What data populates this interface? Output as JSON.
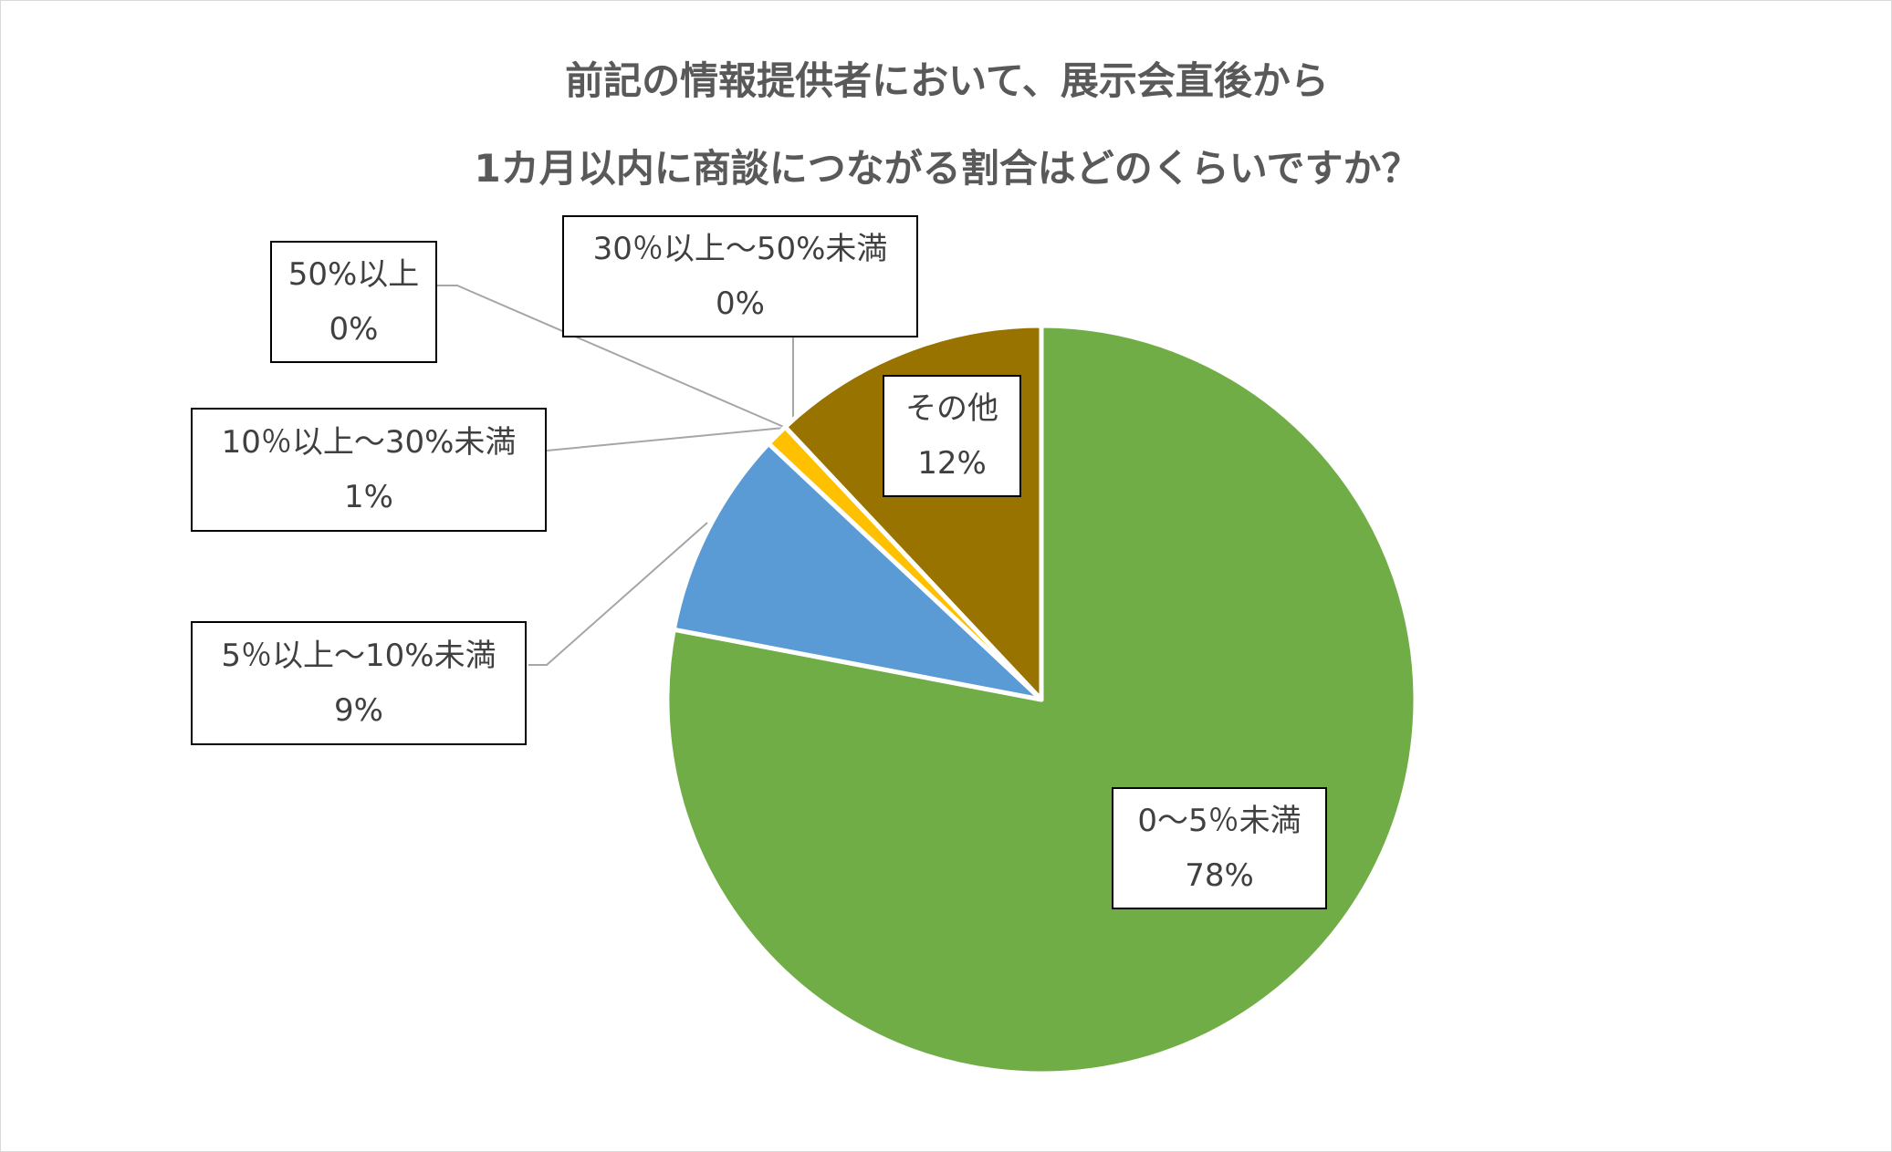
{
  "chart_data": {
    "type": "pie",
    "title": [
      "前記の情報提供者において、展示会直後から",
      "1カ月以内に商談につながる割合はどのくらいですか？"
    ],
    "start_angle": "12 o'clock",
    "direction": "clockwise",
    "slices": [
      {
        "label": "0〜5％未満",
        "value": 78,
        "value_label": "78%",
        "color": "#70AD47"
      },
      {
        "label": "5％以上〜10%未満",
        "value": 9,
        "value_label": "9%",
        "color": "#5B9BD5"
      },
      {
        "label": "10％以上〜30%未満",
        "value": 1,
        "value_label": "1%",
        "color": "#FFC000"
      },
      {
        "label": "30％以上〜50%未満",
        "value": 0,
        "value_label": "0%",
        "color": "#A5A5A5"
      },
      {
        "label": "50%以上",
        "value": 0,
        "value_label": "0%",
        "color": "#4472C4"
      },
      {
        "label": "その他",
        "value": 12,
        "value_label": "12%",
        "color": "#997300"
      }
    ]
  }
}
